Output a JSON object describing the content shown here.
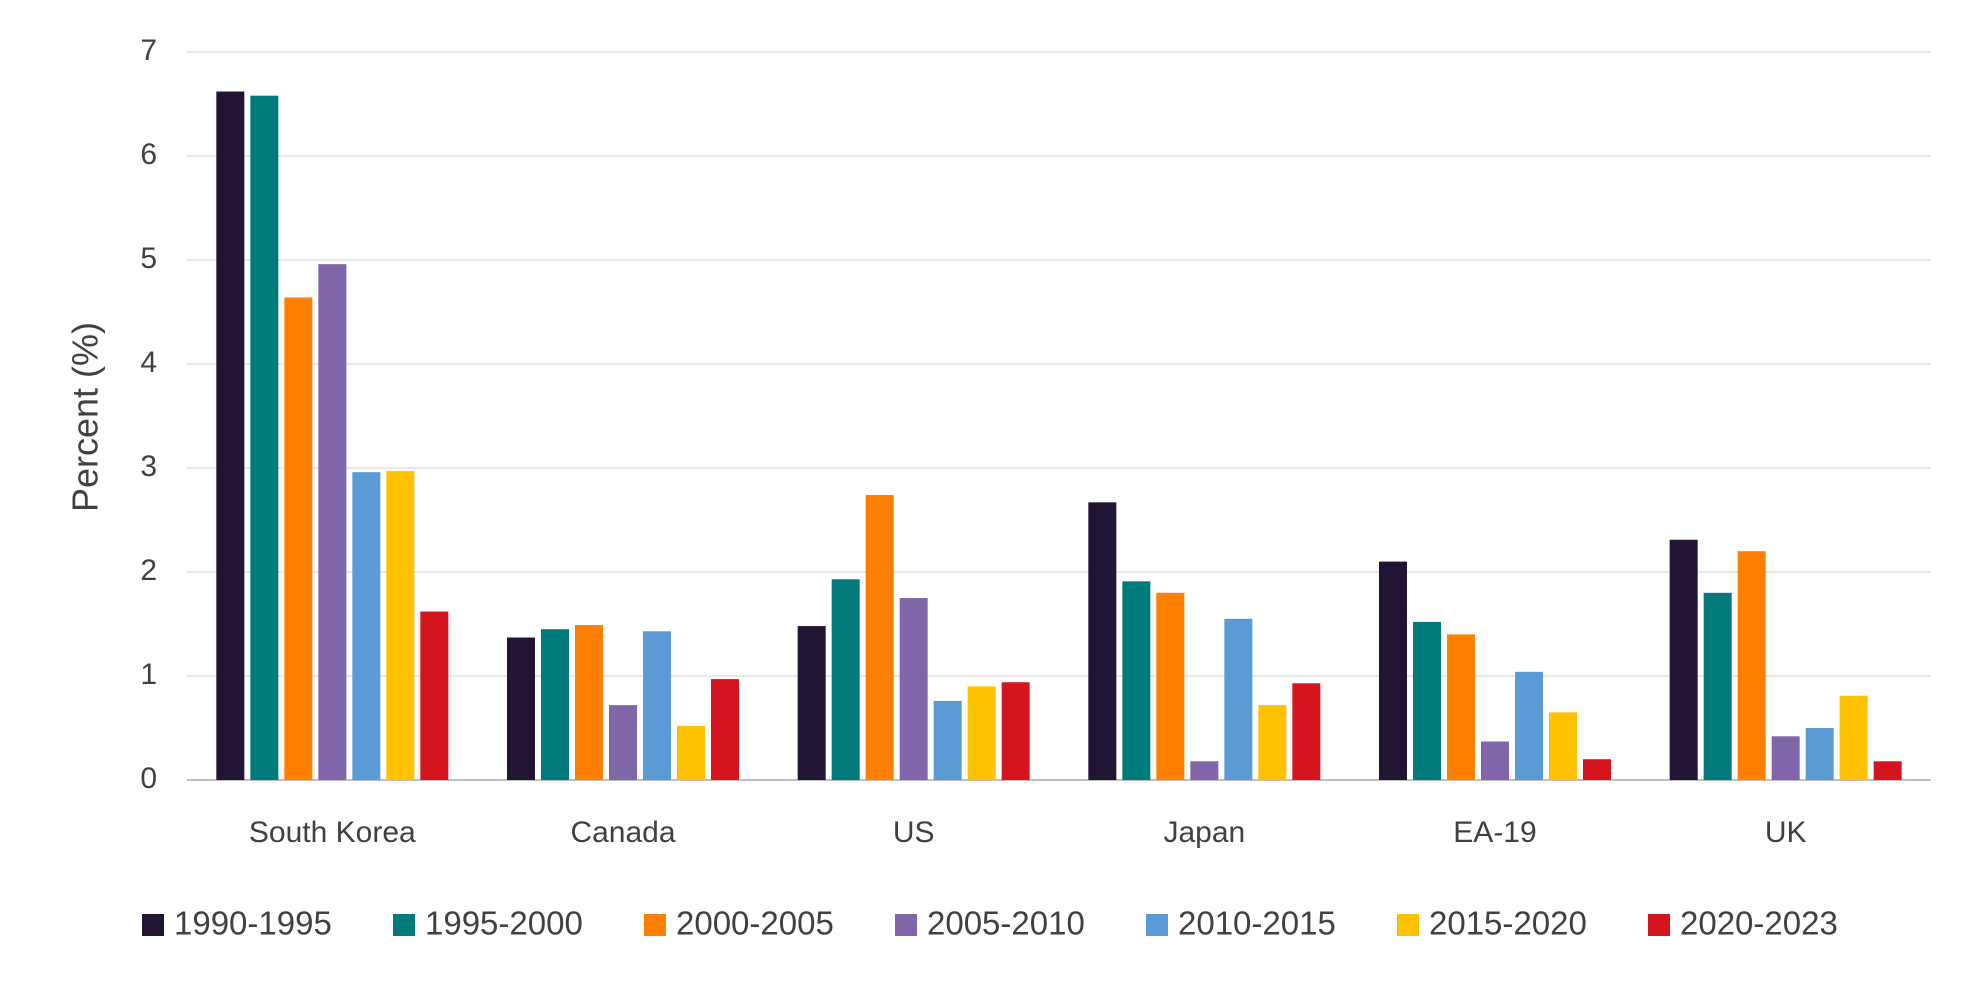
{
  "chart_data": {
    "type": "bar",
    "y_label": "Percent (%)",
    "categories": [
      "South Korea",
      "Canada",
      "US",
      "Japan",
      "EA-19",
      "UK"
    ],
    "series": [
      {
        "name": "1990-1995",
        "color": "#221533",
        "values": [
          6.62,
          1.37,
          1.48,
          2.67,
          2.1,
          2.31
        ]
      },
      {
        "name": "1995-2000",
        "color": "#007a7a",
        "values": [
          6.58,
          1.45,
          1.93,
          1.91,
          1.52,
          1.8
        ]
      },
      {
        "name": "2000-2005",
        "color": "#ff8000",
        "values": [
          4.64,
          1.49,
          2.74,
          1.8,
          1.4,
          2.2
        ]
      },
      {
        "name": "2005-2010",
        "color": "#8065a8",
        "values": [
          4.96,
          0.72,
          1.75,
          0.18,
          0.37,
          0.42
        ]
      },
      {
        "name": "2010-2015",
        "color": "#5b9bd5",
        "values": [
          2.96,
          1.43,
          0.76,
          1.55,
          1.04,
          0.5
        ]
      },
      {
        "name": "2015-2020",
        "color": "#ffc000",
        "values": [
          2.97,
          0.52,
          0.9,
          0.72,
          0.65,
          0.81
        ]
      },
      {
        "name": "2020-2023",
        "color": "#d4151e",
        "values": [
          1.62,
          0.97,
          0.94,
          0.93,
          0.2,
          0.18
        ]
      }
    ],
    "ylim": [
      0,
      7
    ],
    "yticks": [
      0,
      1,
      2,
      3,
      4,
      5,
      6,
      7
    ],
    "grid": true,
    "legend": "bottom"
  }
}
